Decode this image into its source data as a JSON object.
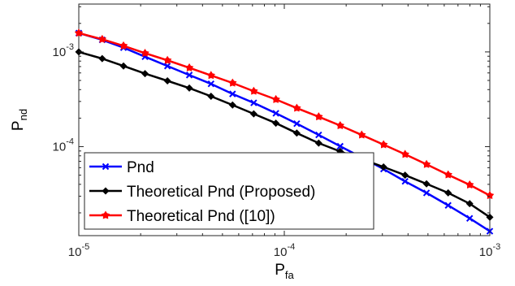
{
  "chart_data": {
    "type": "line",
    "xscale": "log",
    "yscale": "log",
    "xlim": [
      1e-05,
      0.001
    ],
    "ylim": [
      1.15e-05,
      0.0032
    ],
    "xlabel": {
      "base": "P",
      "sub": "fa"
    },
    "ylabel": {
      "base": "P",
      "sub": "nd"
    },
    "x_ticks": [
      {
        "value": 1e-05,
        "base": "10",
        "exp": "-5"
      },
      {
        "value": 0.0001,
        "base": "10",
        "exp": "-4"
      },
      {
        "value": 0.001,
        "base": "10",
        "exp": "-3"
      }
    ],
    "y_ticks": [
      {
        "value": 0.0001,
        "base": "10",
        "exp": "-4"
      },
      {
        "value": 0.001,
        "base": "10",
        "exp": "-3"
      }
    ],
    "grid": false,
    "legend_position": "bottom-left",
    "x": [
      1e-05,
      1.3e-05,
      1.65e-05,
      2.1e-05,
      2.7e-05,
      3.45e-05,
      4.4e-05,
      5.6e-05,
      7.1e-05,
      9.1e-05,
      0.000115,
      0.000147,
      0.000187,
      0.000238,
      0.000304,
      0.000387,
      0.000492,
      0.000627,
      0.000798,
      0.001
    ],
    "series": [
      {
        "name": "Pnd",
        "color": "#0000ff",
        "marker": "x-icon",
        "values": [
          0.00158,
          0.00134,
          0.00111,
          0.00089,
          0.00071,
          0.00057,
          0.00046,
          0.00036,
          0.00029,
          0.000225,
          0.000175,
          0.000133,
          0.000101,
          7.7e-05,
          5.8e-05,
          4.3e-05,
          3.25e-05,
          2.4e-05,
          1.75e-05,
          1.28e-05
        ]
      },
      {
        "name": "Theoretical Pnd (Proposed)",
        "color": "#000000",
        "marker": "diamond-icon",
        "values": [
          0.001,
          0.00085,
          0.00071,
          0.00059,
          0.000495,
          0.000415,
          0.00034,
          0.000275,
          0.000222,
          0.000177,
          0.000139,
          0.000109,
          8.9e-05,
          7.4e-05,
          6.1e-05,
          5e-05,
          4.05e-05,
          3.25e-05,
          2.5e-05,
          1.8e-05
        ]
      },
      {
        "name": "Theoretical Pnd ([10])",
        "color": "#ff0000",
        "marker": "star-icon",
        "values": [
          0.00158,
          0.00136,
          0.00116,
          0.00097,
          0.000815,
          0.00068,
          0.000565,
          0.00047,
          0.000385,
          0.000315,
          0.000255,
          0.000207,
          0.000167,
          0.000133,
          0.000105,
          8.3e-05,
          6.5e-05,
          5.05e-05,
          3.95e-05,
          3.05e-05
        ]
      }
    ]
  }
}
